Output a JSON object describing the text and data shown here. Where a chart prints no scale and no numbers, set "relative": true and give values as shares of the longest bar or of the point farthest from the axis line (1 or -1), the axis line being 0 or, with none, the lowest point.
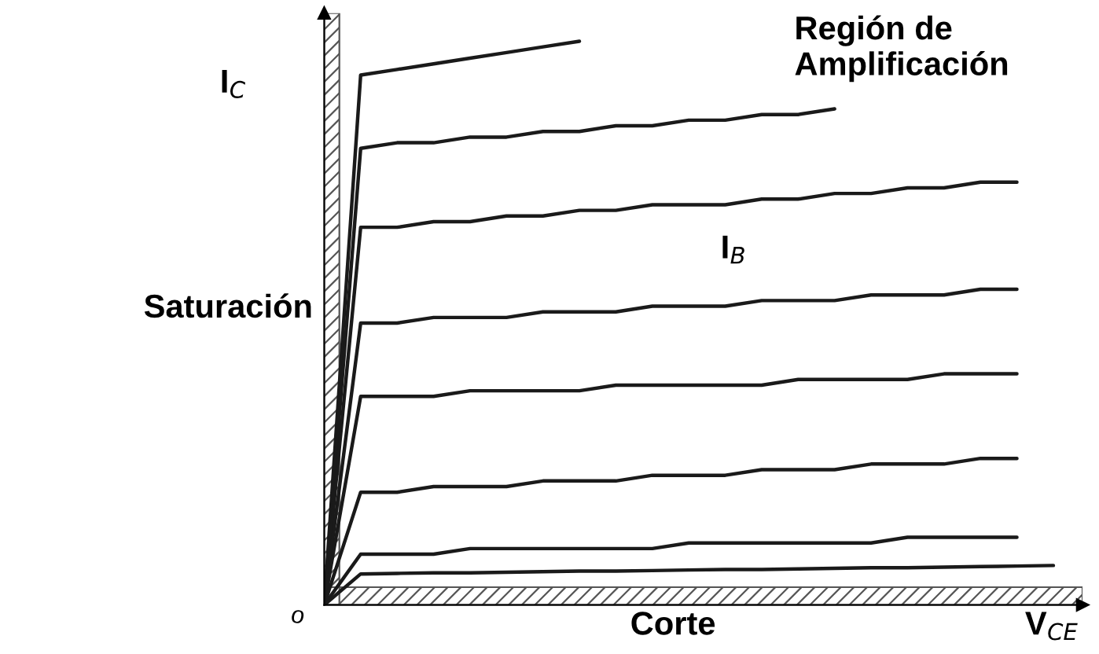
{
  "chart_data": {
    "type": "line",
    "relative": true,
    "xlabel": "V$_{CE}$",
    "ylabel": "I$_{C}$",
    "color": "#1a1a1a",
    "marker": "none",
    "line_style": "solid",
    "legend": false,
    "categories": [
      null,
      null,
      null,
      null,
      null,
      null,
      null,
      null,
      null,
      null,
      null,
      null,
      null,
      null,
      null,
      null,
      null,
      null,
      null,
      null,
      null
    ],
    "series": [
      {
        "values": [
          0,
          0.94,
          0.95,
          0.96,
          0.97,
          0.98,
          0.99,
          1.0,
          null,
          null,
          null,
          null,
          null,
          null,
          null,
          null,
          null,
          null,
          null,
          null,
          null
        ]
      },
      {
        "values": [
          0,
          0.81,
          0.82,
          0.82,
          0.83,
          0.83,
          0.84,
          0.84,
          0.85,
          0.85,
          0.86,
          0.86,
          0.87,
          0.87,
          0.88,
          null,
          null,
          null,
          null,
          null,
          null
        ]
      },
      {
        "values": [
          0,
          0.67,
          0.67,
          0.68,
          0.68,
          0.69,
          0.69,
          0.7,
          0.7,
          0.71,
          0.71,
          0.71,
          0.72,
          0.72,
          0.73,
          0.73,
          0.74,
          0.74,
          0.75,
          0.75,
          null
        ]
      },
      {
        "values": [
          0,
          0.5,
          0.5,
          0.51,
          0.51,
          0.51,
          0.52,
          0.52,
          0.52,
          0.53,
          0.53,
          0.53,
          0.54,
          0.54,
          0.54,
          0.55,
          0.55,
          0.55,
          0.56,
          0.56,
          null
        ]
      },
      {
        "values": [
          0,
          0.37,
          0.37,
          0.37,
          0.38,
          0.38,
          0.38,
          0.38,
          0.39,
          0.39,
          0.39,
          0.39,
          0.39,
          0.4,
          0.4,
          0.4,
          0.4,
          0.41,
          0.41,
          0.41,
          null
        ]
      },
      {
        "values": [
          0,
          0.2,
          0.2,
          0.21,
          0.21,
          0.21,
          0.22,
          0.22,
          0.22,
          0.23,
          0.23,
          0.23,
          0.24,
          0.24,
          0.24,
          0.25,
          0.25,
          0.25,
          0.26,
          0.26,
          null
        ]
      },
      {
        "values": [
          0,
          0.09,
          0.09,
          0.09,
          0.1,
          0.1,
          0.1,
          0.1,
          0.1,
          0.1,
          0.11,
          0.11,
          0.11,
          0.11,
          0.11,
          0.11,
          0.12,
          0.12,
          0.12,
          0.12,
          null
        ]
      },
      {
        "values": [
          0,
          0.055,
          0.056,
          0.057,
          0.057,
          0.058,
          0.059,
          0.06,
          0.06,
          0.061,
          0.062,
          0.063,
          0.063,
          0.064,
          0.065,
          0.066,
          0.066,
          0.067,
          0.068,
          0.069,
          0.07
        ]
      }
    ],
    "annotations": [
      "Región de\nAmplificación",
      "Saturación",
      "I$_{B}$",
      "Corte",
      "o"
    ]
  }
}
